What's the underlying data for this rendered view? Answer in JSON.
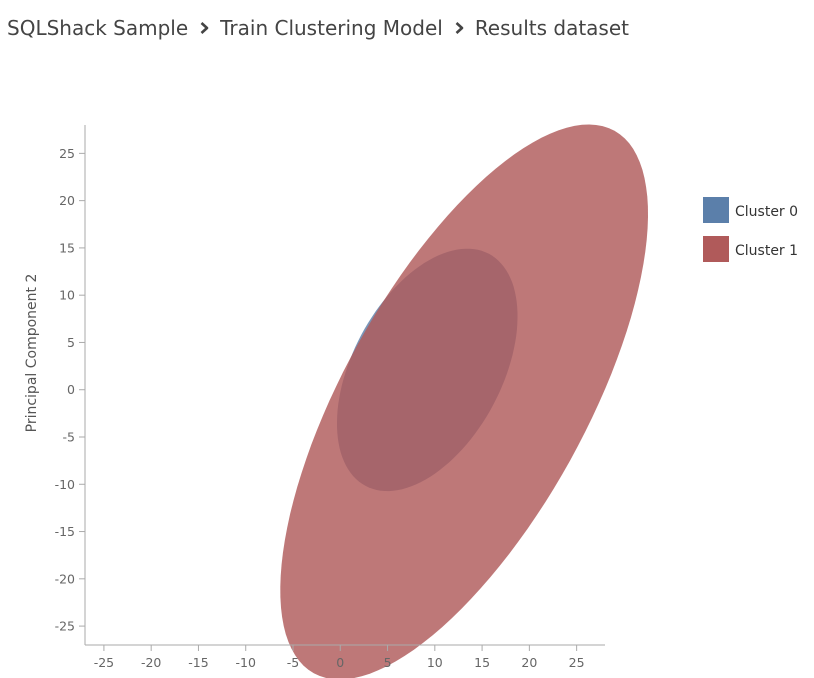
{
  "breadcrumb": {
    "items": [
      "SQLShack Sample",
      "Train Clustering Model",
      "Results dataset"
    ]
  },
  "icons": {
    "separator": "chevron-right-icon"
  },
  "chart_data": {
    "type": "scatter",
    "subtype": "cluster-ellipses",
    "xlabel": "",
    "ylabel": "Principal Component 2",
    "xlim": [
      -27,
      28
    ],
    "ylim": [
      -27,
      28
    ],
    "xticks": [
      -25,
      -20,
      -15,
      -10,
      -5,
      0,
      5,
      10,
      15,
      20,
      25
    ],
    "yticks": [
      -25,
      -20,
      -15,
      -10,
      -5,
      0,
      5,
      10,
      15,
      20,
      25
    ],
    "grid": false,
    "legend_position": "right",
    "series": [
      {
        "name": "Cluster 0",
        "color": "#5b7faa",
        "opacity": 0.82,
        "center": [
          9.2,
          2.1
        ],
        "semi_major": 13.9,
        "semi_minor": 7.9,
        "angle_deg": 62
      },
      {
        "name": "Cluster 1",
        "color": "#b05a5a",
        "opacity": 0.82,
        "center": [
          13.1,
          -1.3
        ],
        "semi_major": 32.8,
        "semi_minor": 12.8,
        "angle_deg": 61
      }
    ]
  }
}
